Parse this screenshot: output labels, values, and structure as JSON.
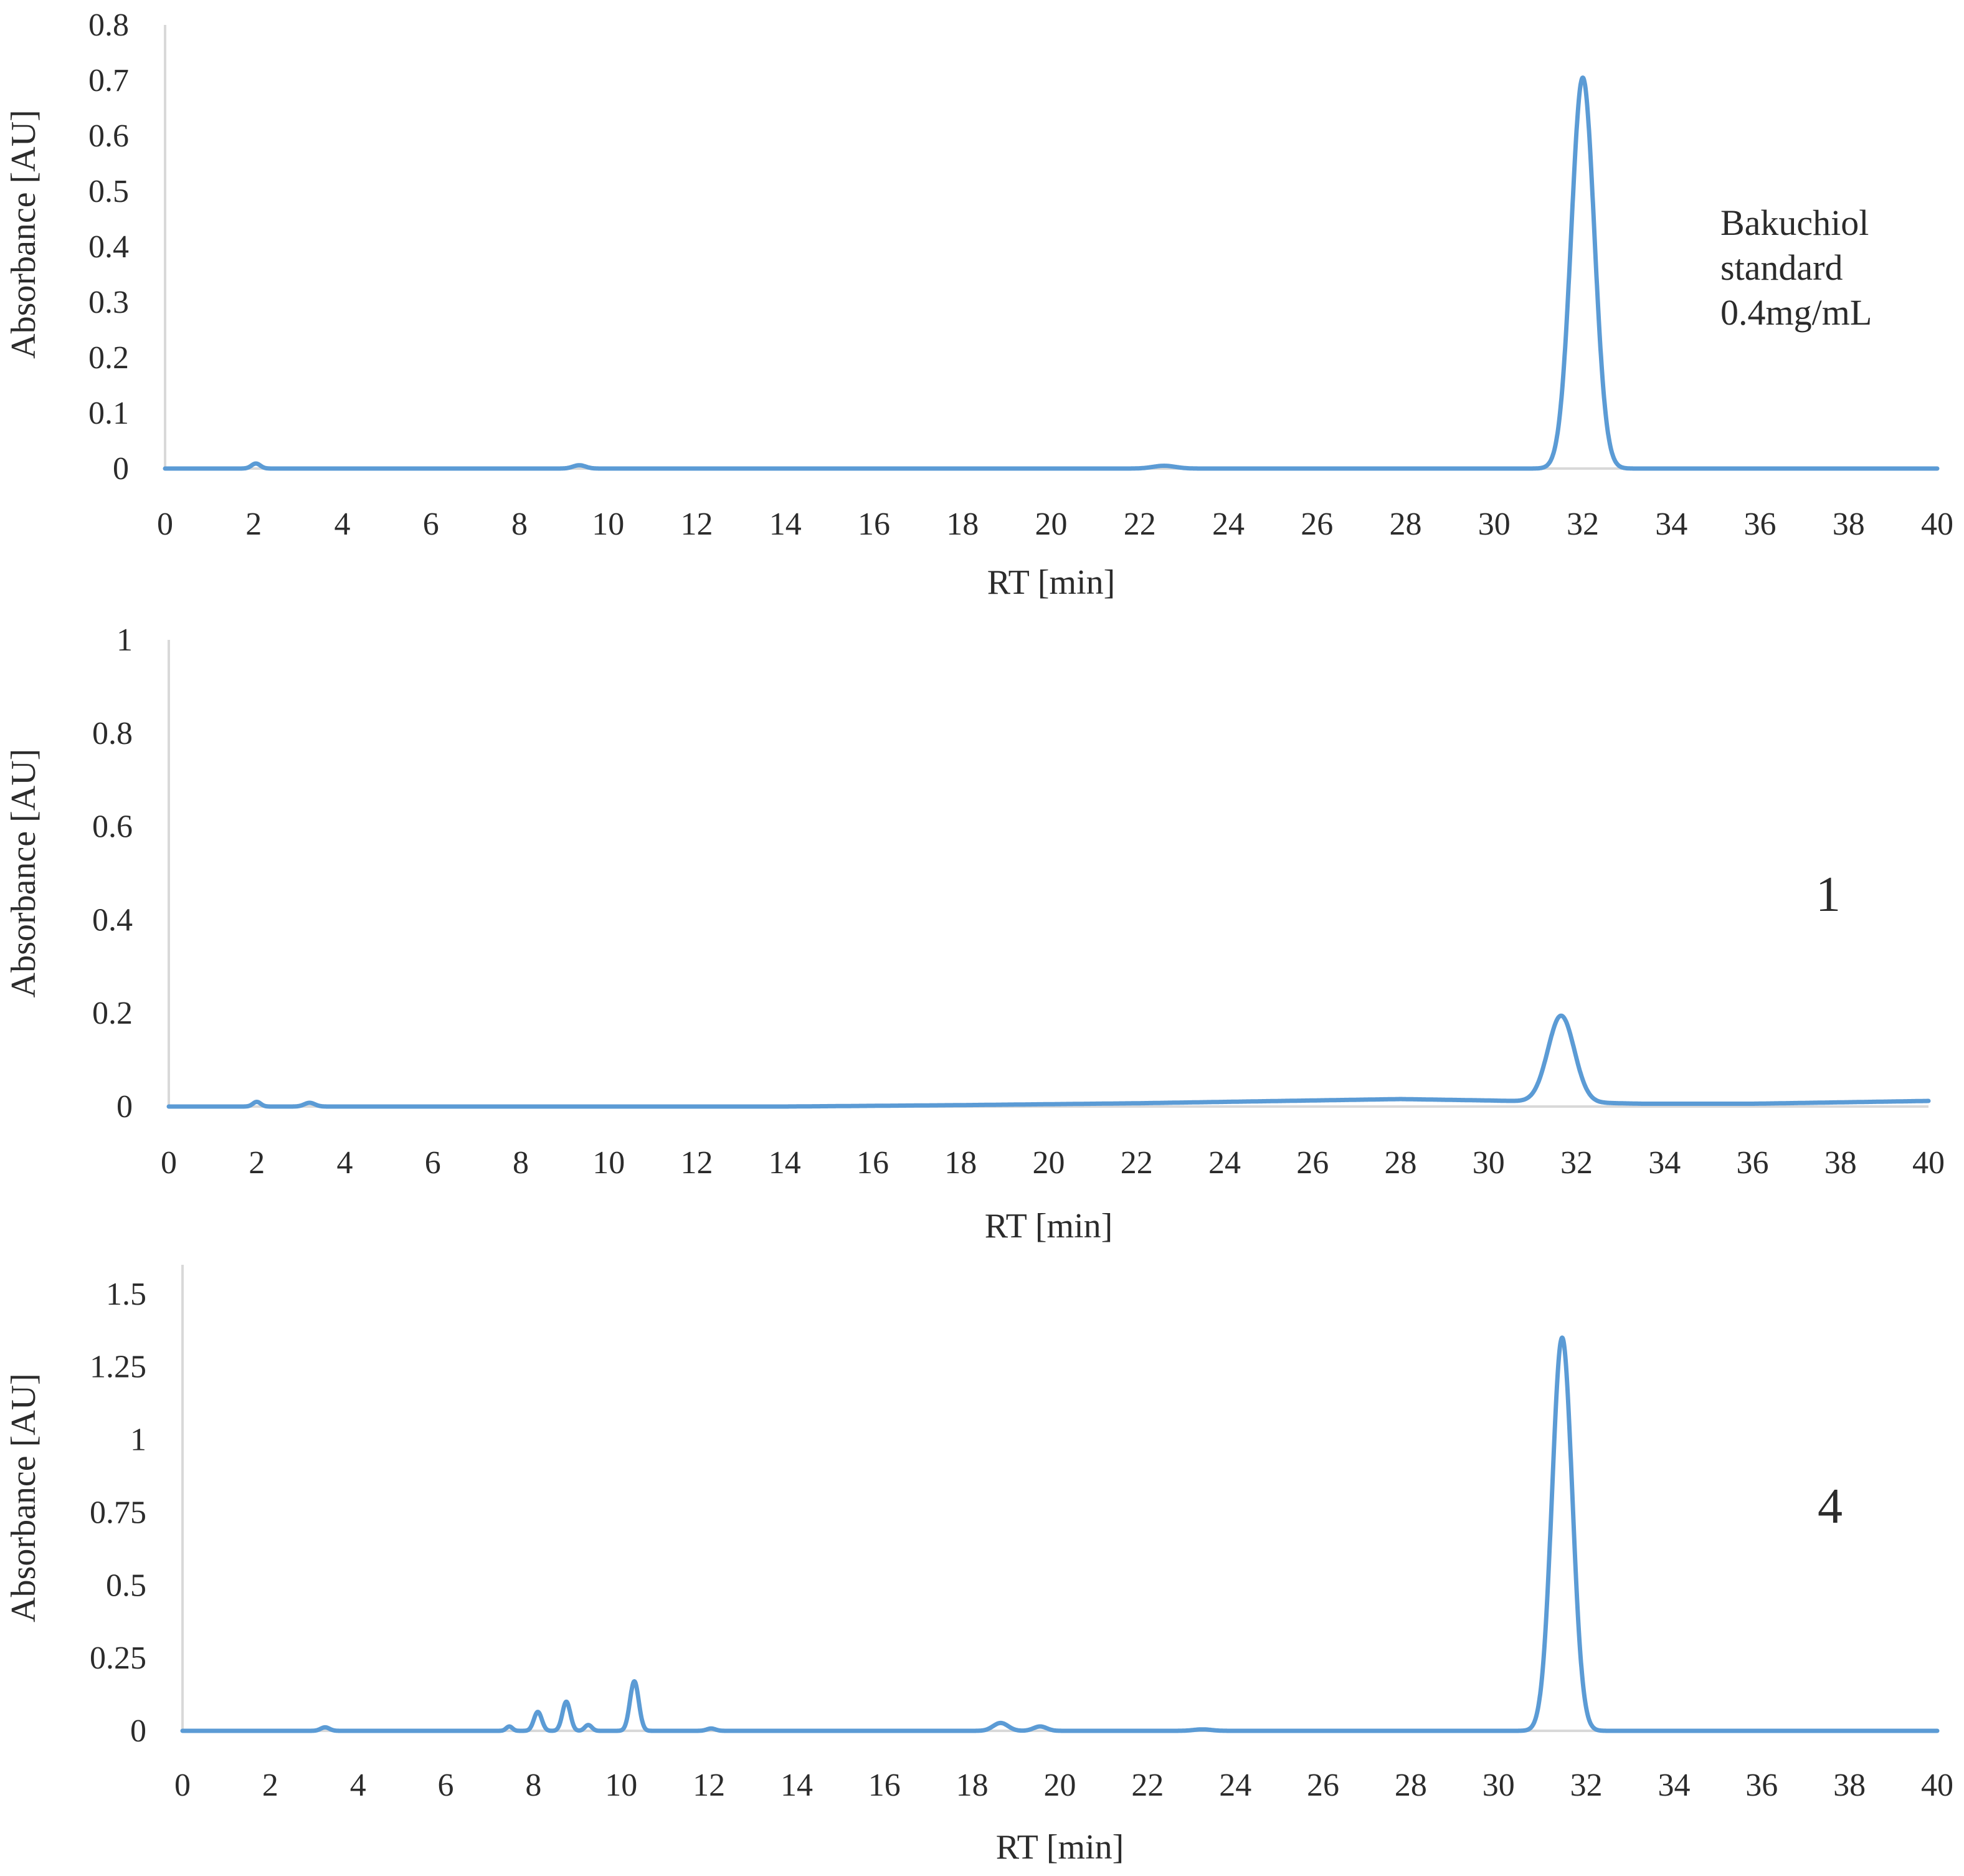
{
  "chart_data": [
    {
      "type": "line",
      "title": "",
      "xlabel": "RT [min]",
      "ylabel": "Absorbance [AU]",
      "xlim": [
        0,
        40
      ],
      "ylim": [
        0,
        0.8
      ],
      "xticks": [
        "0",
        "2",
        "4",
        "6",
        "8",
        "10",
        "12",
        "14",
        "16",
        "18",
        "20",
        "22",
        "24",
        "26",
        "28",
        "30",
        "32",
        "34",
        "36",
        "38",
        "40"
      ],
      "yticks": [
        "0",
        "0.1",
        "0.2",
        "0.3",
        "0.4",
        "0.5",
        "0.6",
        "0.7",
        "0.8"
      ],
      "grid": false,
      "annotation": [
        "Bakuchiol",
        "standard",
        "0.4mg/mL"
      ],
      "series": [
        {
          "color": "#5b9bd5",
          "baseline": [],
          "peaks": [
            {
              "rt": 2.05,
              "height": 0.009,
              "width": 0.1
            },
            {
              "rt": 9.35,
              "height": 0.006,
              "width": 0.14
            },
            {
              "rt": 22.55,
              "height": 0.005,
              "width": 0.25
            },
            {
              "rt": 32.0,
              "height": 0.705,
              "width": 0.26
            }
          ]
        }
      ]
    },
    {
      "type": "line",
      "title": "",
      "xlabel": "RT [min]",
      "ylabel": "Absorbance [AU]",
      "xlim": [
        0,
        40
      ],
      "ylim": [
        0,
        1
      ],
      "xticks": [
        "0",
        "2",
        "4",
        "6",
        "8",
        "10",
        "12",
        "14",
        "16",
        "18",
        "20",
        "22",
        "24",
        "26",
        "28",
        "30",
        "32",
        "34",
        "36",
        "38",
        "40"
      ],
      "yticks": [
        "0",
        "0.2",
        "0.4",
        "0.6",
        "0.8",
        "1"
      ],
      "grid": false,
      "annotation": [
        "1"
      ],
      "series": [
        {
          "color": "#5b9bd5",
          "baseline": [
            [
              0,
              0.0
            ],
            [
              14,
              0.0
            ],
            [
              18,
              0.003
            ],
            [
              22,
              0.007
            ],
            [
              26,
              0.013
            ],
            [
              28,
              0.016
            ],
            [
              30,
              0.013
            ],
            [
              33.5,
              0.006
            ],
            [
              36,
              0.006
            ],
            [
              40,
              0.012
            ]
          ],
          "peaks": [
            {
              "rt": 2.0,
              "height": 0.01,
              "width": 0.09
            },
            {
              "rt": 3.2,
              "height": 0.008,
              "width": 0.12
            },
            {
              "rt": 31.65,
              "height": 0.185,
              "width": 0.3
            }
          ]
        }
      ]
    },
    {
      "type": "line",
      "title": "",
      "xlabel": "RT [min]",
      "ylabel": "Absorbance [AU]",
      "xlim": [
        0,
        40
      ],
      "ylim": [
        0,
        1.6
      ],
      "xticks": [
        "0",
        "2",
        "4",
        "6",
        "8",
        "10",
        "12",
        "14",
        "16",
        "18",
        "20",
        "22",
        "24",
        "26",
        "28",
        "30",
        "32",
        "34",
        "36",
        "38",
        "40"
      ],
      "yticks": [
        "0",
        "0.25",
        "0.5",
        "0.75",
        "1",
        "1.25",
        "1.5"
      ],
      "grid": false,
      "annotation": [
        "4"
      ],
      "series": [
        {
          "color": "#5b9bd5",
          "baseline": [],
          "peaks": [
            {
              "rt": 3.25,
              "height": 0.012,
              "width": 0.1
            },
            {
              "rt": 7.45,
              "height": 0.015,
              "width": 0.07
            },
            {
              "rt": 8.1,
              "height": 0.065,
              "width": 0.09
            },
            {
              "rt": 8.75,
              "height": 0.1,
              "width": 0.09
            },
            {
              "rt": 9.25,
              "height": 0.02,
              "width": 0.08
            },
            {
              "rt": 10.3,
              "height": 0.17,
              "width": 0.1
            },
            {
              "rt": 12.05,
              "height": 0.008,
              "width": 0.1
            },
            {
              "rt": 18.65,
              "height": 0.027,
              "width": 0.17
            },
            {
              "rt": 19.55,
              "height": 0.015,
              "width": 0.15
            },
            {
              "rt": 23.25,
              "height": 0.005,
              "width": 0.2
            },
            {
              "rt": 31.45,
              "height": 1.35,
              "width": 0.23
            }
          ]
        }
      ]
    }
  ]
}
